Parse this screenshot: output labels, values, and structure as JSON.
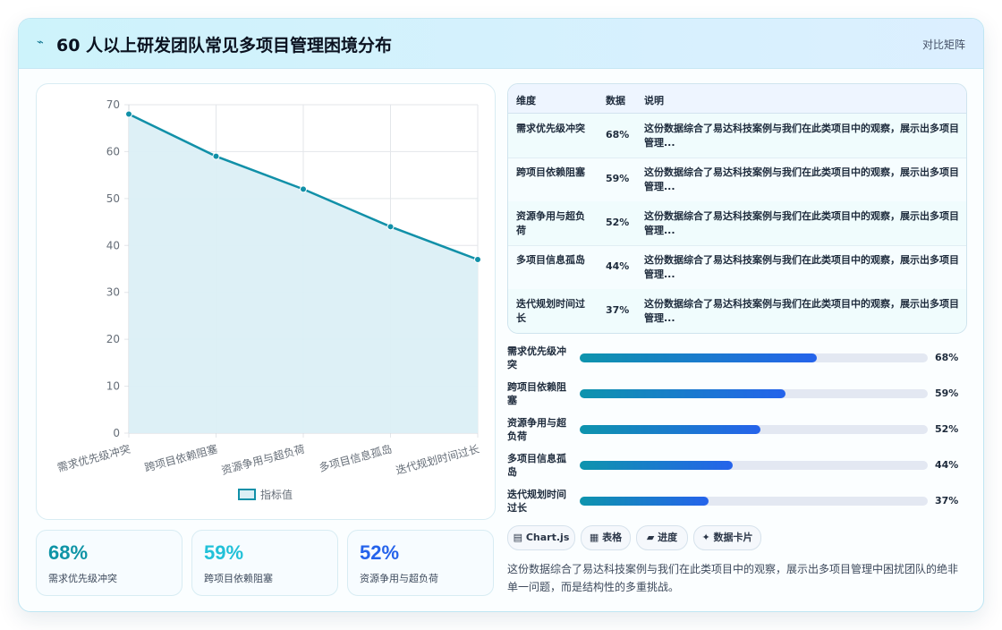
{
  "header": {
    "icon": "⌁",
    "title": "60 人以上研发团队常见多项目管理困境分布",
    "link": "对比矩阵"
  },
  "chart_data": {
    "type": "area",
    "categories": [
      "需求优先级冲突",
      "跨项目依赖阻塞",
      "资源争用与超负荷",
      "多项目信息孤岛",
      "迭代规划时间过长"
    ],
    "series": [
      {
        "name": "指标值",
        "values": [
          68,
          59,
          52,
          44,
          37
        ]
      }
    ],
    "ylim": [
      0,
      70
    ],
    "yticks": [
      0,
      10,
      20,
      30,
      40,
      50,
      60,
      70
    ],
    "legend": "bottom",
    "grid": true,
    "colors": {
      "line": "#1190a8",
      "fill": "#dbeff5"
    }
  },
  "kpis": [
    {
      "value": "68%",
      "label": "需求优先级冲突",
      "color": "#0e94a6"
    },
    {
      "value": "59%",
      "label": "跨项目依赖阻塞",
      "color": "#22c1d8"
    },
    {
      "value": "52%",
      "label": "资源争用与超负荷",
      "color": "#2563eb"
    }
  ],
  "table": {
    "headers": [
      "维度",
      "数据",
      "说明"
    ],
    "rows": [
      {
        "dim": "需求优先级冲突",
        "val": "68%",
        "desc": "这份数据综合了易达科技案例与我们在此类项目中的观察，展示出多项目管理..."
      },
      {
        "dim": "跨项目依赖阻塞",
        "val": "59%",
        "desc": "这份数据综合了易达科技案例与我们在此类项目中的观察，展示出多项目管理..."
      },
      {
        "dim": "资源争用与超负荷",
        "val": "52%",
        "desc": "这份数据综合了易达科技案例与我们在此类项目中的观察，展示出多项目管理..."
      },
      {
        "dim": "多项目信息孤岛",
        "val": "44%",
        "desc": "这份数据综合了易达科技案例与我们在此类项目中的观察，展示出多项目管理..."
      },
      {
        "dim": "迭代规划时间过长",
        "val": "37%",
        "desc": "这份数据综合了易达科技案例与我们在此类项目中的观察，展示出多项目管理..."
      }
    ]
  },
  "progress": [
    {
      "label": "需求优先级冲突",
      "value": 0.68,
      "text": "68%"
    },
    {
      "label": "跨项目依赖阻塞",
      "value": 0.59,
      "text": "59%"
    },
    {
      "label": "资源争用与超负荷",
      "value": 0.52,
      "text": "52%"
    },
    {
      "label": "多项目信息孤岛",
      "value": 0.44,
      "text": "44%"
    },
    {
      "label": "迭代规划时间过长",
      "value": 0.37,
      "text": "37%"
    }
  ],
  "chips": [
    {
      "icon": "▤",
      "label": "Chart.js"
    },
    {
      "icon": "▦",
      "label": "表格"
    },
    {
      "icon": "▰",
      "label": "进度"
    },
    {
      "icon": "✦",
      "label": "数据卡片"
    }
  ],
  "summary": "这份数据综合了易达科技案例与我们在此类项目中的观察，展示出多项目管理中困扰团队的绝非单一问题，而是结构性的多重挑战。"
}
